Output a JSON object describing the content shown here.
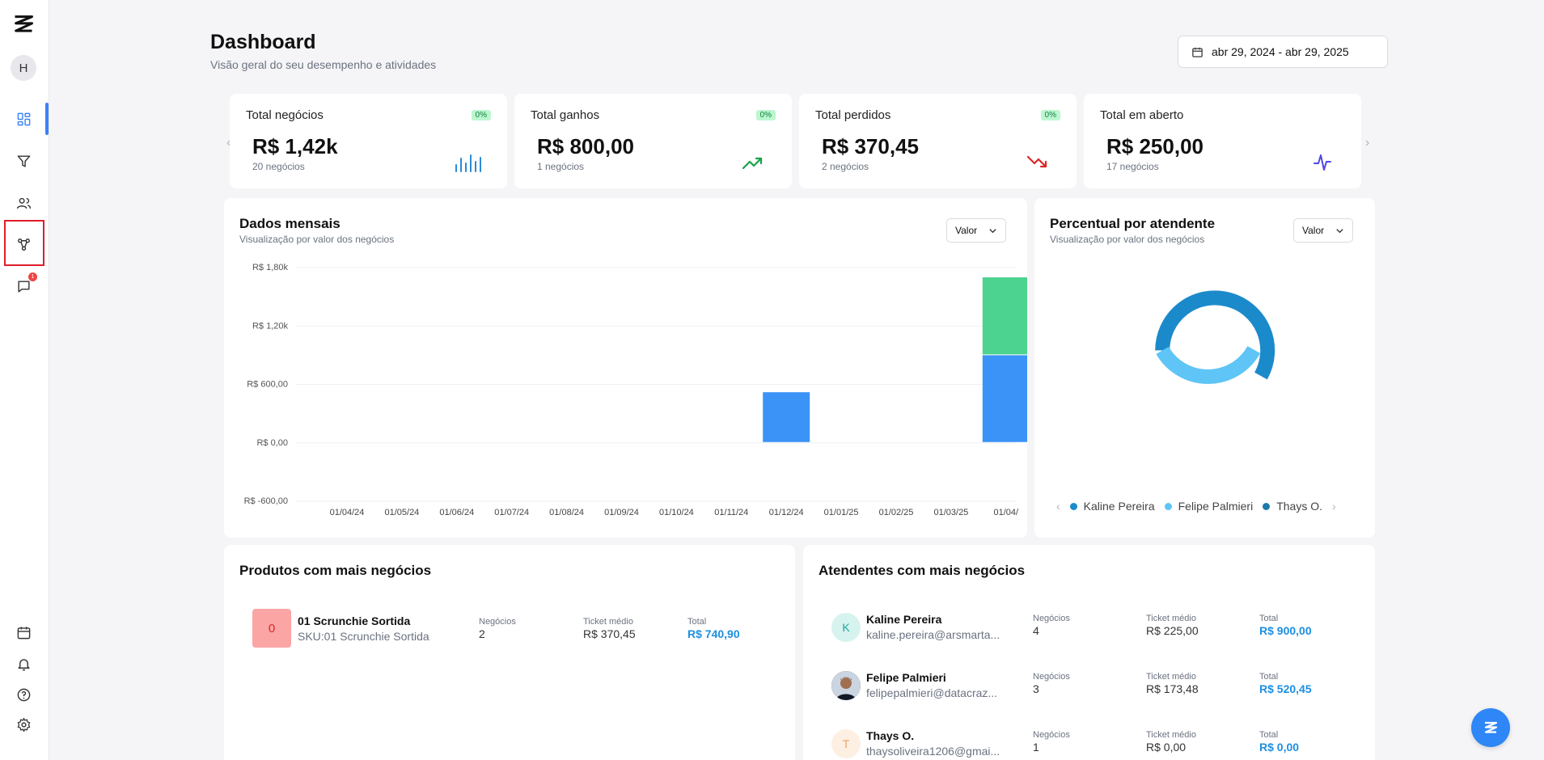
{
  "sidebar": {
    "avatar_initial": "H",
    "notification_count": "1",
    "items": [
      {
        "name": "dashboard-icon"
      },
      {
        "name": "funnel-icon"
      },
      {
        "name": "users-icon"
      },
      {
        "name": "integrations-icon"
      },
      {
        "name": "chat-icon"
      },
      {
        "name": "calendar-icon"
      },
      {
        "name": "bell-icon"
      },
      {
        "name": "help-icon"
      },
      {
        "name": "gear-icon"
      }
    ]
  },
  "header": {
    "title": "Dashboard",
    "subtitle": "Visão geral do seu desempenho e atividades",
    "date_range": "abr 29, 2024 - abr 29, 2025"
  },
  "stats": [
    {
      "title": "Total negócios",
      "pct": "0%",
      "value": "R$ 1,42k",
      "sub": "20 negócios",
      "icon": "bars-icon"
    },
    {
      "title": "Total ganhos",
      "pct": "0%",
      "value": "R$ 800,00",
      "sub": "1 negócios",
      "icon": "trend-up-icon"
    },
    {
      "title": "Total perdidos",
      "pct": "0%",
      "value": "R$ 370,45",
      "sub": "2 negócios",
      "icon": "trend-down-icon"
    },
    {
      "title": "Total em aberto",
      "value": "R$ 250,00",
      "sub": "17 negócios",
      "icon": "activity-icon"
    }
  ],
  "monthly": {
    "title": "Dados mensais",
    "subtitle": "Visualização por valor dos negócios",
    "select": "Valor"
  },
  "percent": {
    "title": "Percentual por atendente",
    "subtitle": "Visualização por valor dos negócios",
    "select": "Valor",
    "legend": [
      "Kaline Pereira",
      "Felipe Palmieri",
      "Thays O."
    ]
  },
  "chart_data": [
    {
      "type": "bar",
      "stacked": true,
      "categories": [
        "01/04/24",
        "01/05/24",
        "01/06/24",
        "01/07/24",
        "01/08/24",
        "01/09/24",
        "01/10/24",
        "01/11/24",
        "01/12/24",
        "01/01/25",
        "01/02/25",
        "01/03/25",
        "01/04/"
      ],
      "series": [
        {
          "values": [
            0,
            0,
            0,
            0,
            0,
            0,
            0,
            0,
            520,
            0,
            0,
            0,
            900
          ],
          "color": "#3b93f7"
        },
        {
          "values": [
            0,
            0,
            0,
            0,
            0,
            0,
            0,
            0,
            0,
            0,
            0,
            0,
            800
          ],
          "color": "#4cd38f"
        }
      ],
      "yticks": [
        "R$ 1,80k",
        "R$ 1,20k",
        "R$ 600,00",
        "R$ 0,00",
        "R$ -600,00"
      ],
      "ylim": [
        -600,
        1800
      ]
    },
    {
      "type": "pie",
      "donut": true,
      "labels": [
        "Kaline Pereira",
        "Felipe Palmieri",
        "Thays O."
      ],
      "values": [
        900,
        520.45,
        0
      ],
      "colors": [
        "#1b8acb",
        "#5ec5f6",
        "#1e7aa8"
      ]
    }
  ],
  "products": {
    "title": "Produtos com mais negócios",
    "items": [
      {
        "thumb": "0",
        "name": "01 Scrunchie Sortida",
        "sku": "SKU:01 Scrunchie Sortida",
        "deals_label": "Negócios",
        "deals": "2",
        "ticket_label": "Ticket médio",
        "ticket": "R$ 370,45",
        "total_label": "Total",
        "total": "R$ 740,90"
      }
    ]
  },
  "attendants": {
    "title": "Atendentes com mais negócios",
    "items": [
      {
        "initial": "K",
        "name": "Kaline Pereira",
        "email": "kaline.pereira@arsmarta...",
        "deals_label": "Negócios",
        "deals": "4",
        "ticket_label": "Ticket médio",
        "ticket": "R$ 225,00",
        "total_label": "Total",
        "total": "R$ 900,00"
      },
      {
        "initial": "",
        "name": "Felipe Palmieri",
        "email": "felipepalmieri@datacraz...",
        "deals_label": "Negócios",
        "deals": "3",
        "ticket_label": "Ticket médio",
        "ticket": "R$ 173,48",
        "total_label": "Total",
        "total": "R$ 520,45"
      },
      {
        "initial": "T",
        "name": "Thays O.",
        "email": "thaysoliveira1206@gmai...",
        "deals_label": "Negócios",
        "deals": "1",
        "ticket_label": "Ticket médio",
        "ticket": "R$ 0,00",
        "total_label": "Total",
        "total": "R$ 0,00"
      }
    ]
  }
}
